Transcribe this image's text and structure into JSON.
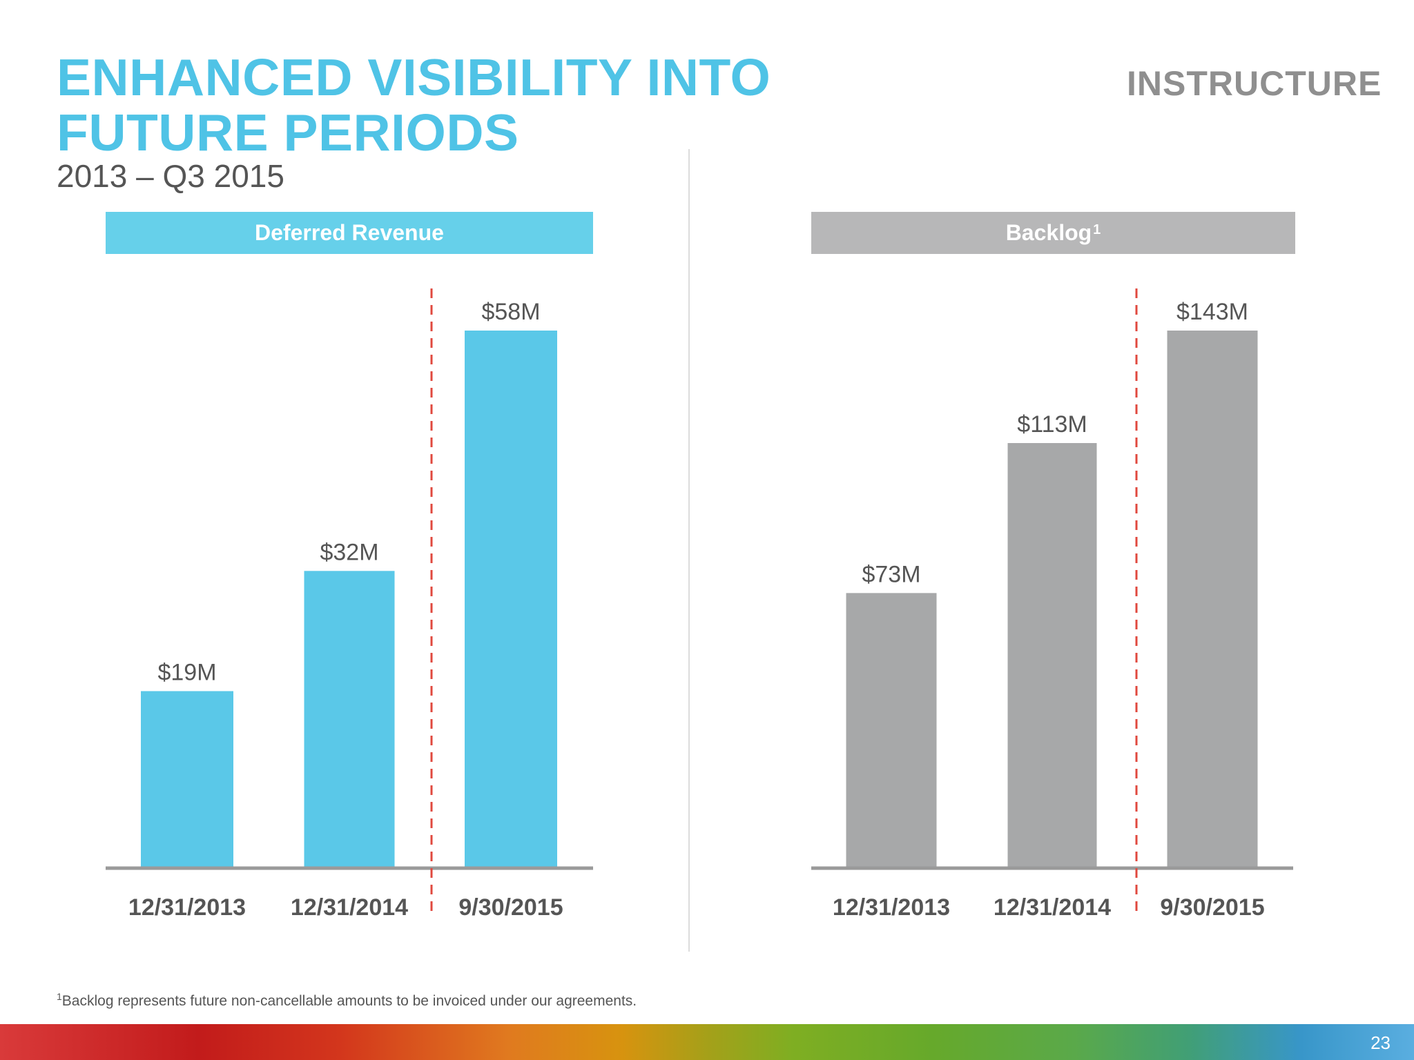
{
  "page": {
    "title_line1": "ENHANCED VISIBILITY INTO",
    "title_line2": "FUTURE PERIODS",
    "subtitle": "2013 – Q3 2015",
    "brand": "INSTRUCTURE",
    "footnote_marker": "1",
    "footnote_text": "Backlog represents future non-cancellable amounts to be invoiced under our agreements.",
    "page_number": "23"
  },
  "colors": {
    "accent": "#4fc3e6",
    "deferred_header": "#66d0ea",
    "deferred_bar": "#5ac8e8",
    "backlog_header": "#b7b7b8",
    "backlog_bar": "#a7a8a9",
    "divider_dashed": "#e0483e",
    "axis": "#9a9a9a"
  },
  "chart_data": [
    {
      "type": "bar",
      "title": "Deferred Revenue",
      "title_superscript": "",
      "categories": [
        "12/31/2013",
        "12/31/2014",
        "9/30/2015"
      ],
      "values": [
        19,
        32,
        58
      ],
      "value_labels": [
        "$19M",
        "$32M",
        "$58M"
      ],
      "ylim": [
        0,
        58
      ],
      "xlabel": "",
      "ylabel": "",
      "grid": false,
      "separator_after_category_index": 1
    },
    {
      "type": "bar",
      "title": "Backlog",
      "title_superscript": "1",
      "categories": [
        "12/31/2013",
        "12/31/2014",
        "9/30/2015"
      ],
      "values": [
        73,
        113,
        143
      ],
      "value_labels": [
        "$73M",
        "$113M",
        "$143M"
      ],
      "ylim": [
        0,
        143
      ],
      "xlabel": "",
      "ylabel": "",
      "grid": false,
      "separator_after_category_index": 1
    }
  ]
}
